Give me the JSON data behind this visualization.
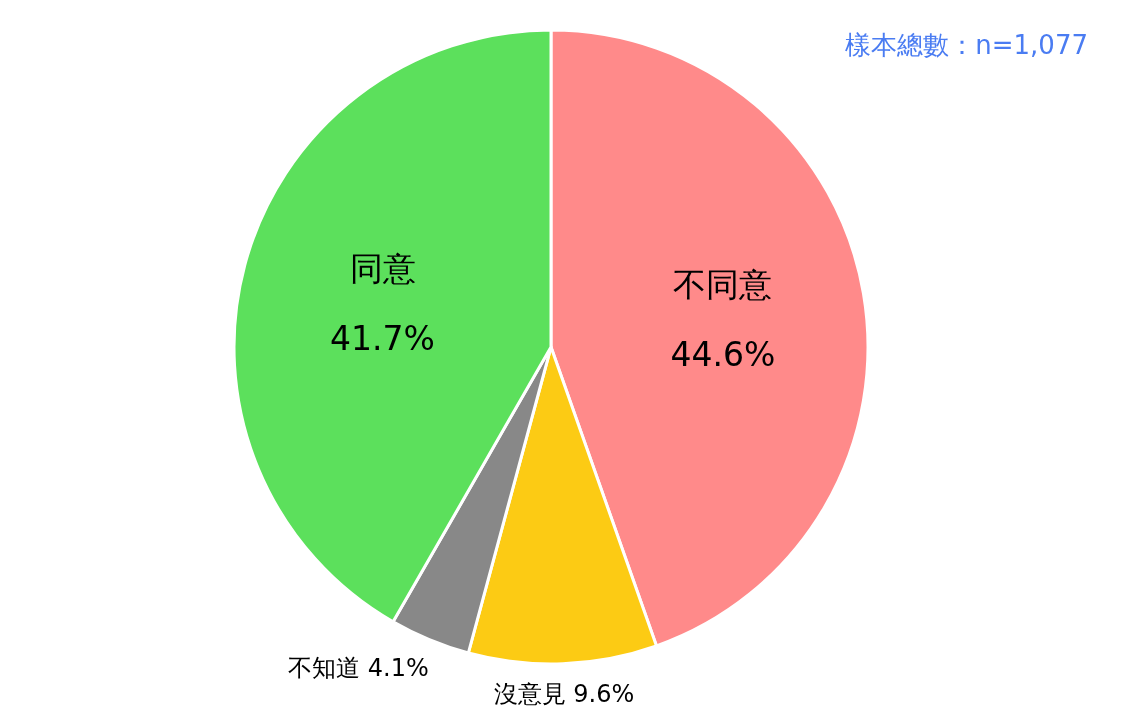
{
  "chart_data": {
    "type": "pie",
    "categories": [
      "不同意",
      "沒意見",
      "不知道",
      "同意"
    ],
    "values": [
      44.6,
      9.6,
      4.1,
      41.7
    ],
    "value_labels": [
      "44.6%",
      "9.6%",
      "4.1%",
      "41.7%"
    ],
    "colors": [
      "#ff8a8a",
      "#fccb14",
      "#888888",
      "#5ce05c"
    ],
    "annotations": [
      "樣本總數：n=1,077"
    ]
  }
}
